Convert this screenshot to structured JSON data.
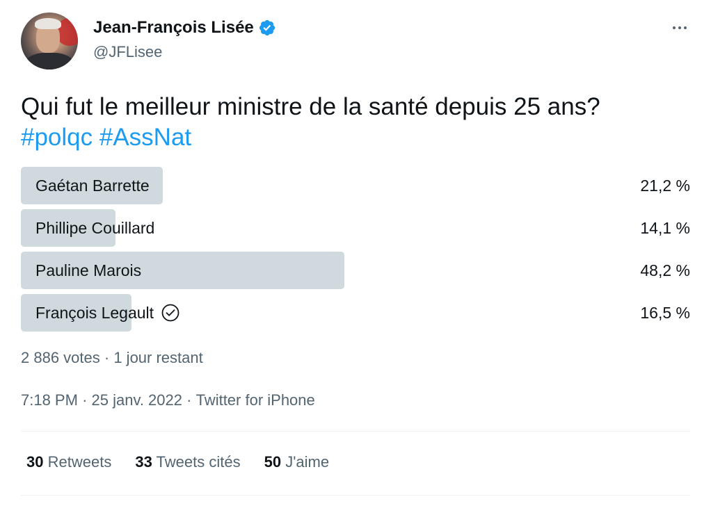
{
  "author": {
    "name": "Jean-François Lisée",
    "handle": "@JFLisee",
    "verified": true
  },
  "tweet": {
    "text": "Qui fut le meilleur ministre de la santé depuis 25 ans?",
    "hashtags": [
      "#polqc",
      "#AssNat"
    ]
  },
  "poll": {
    "options": [
      {
        "label": "Gaétan Barrette",
        "percent_text": "21,2 %",
        "percent": 21.2,
        "winner": false
      },
      {
        "label": "Phillipe Couillard",
        "percent_text": "14,1 %",
        "percent": 14.1,
        "winner": false
      },
      {
        "label": "Pauline Marois",
        "percent_text": "48,2 %",
        "percent": 48.2,
        "winner": false
      },
      {
        "label": "François Legault",
        "percent_text": "16,5 %",
        "percent": 16.5,
        "winner": true
      }
    ],
    "votes": "2 886 votes",
    "separator": "·",
    "remaining": "1 jour restant"
  },
  "meta": {
    "time": "7:18 PM",
    "date": "25 janv. 2022",
    "source": "Twitter for iPhone",
    "separator": "·"
  },
  "stats": {
    "retweets_count": "30",
    "retweets_label": "Retweets",
    "quotes_count": "33",
    "quotes_label": "Tweets cités",
    "likes_count": "50",
    "likes_label": "J'aime"
  },
  "colors": {
    "accent": "#1d9bf0",
    "poll_fill": "#cfd9de",
    "secondary_text": "#536471",
    "primary_text": "#0f1419"
  },
  "icons": [
    "verified-badge-icon",
    "more-options-icon",
    "checkmark-circle-icon"
  ]
}
